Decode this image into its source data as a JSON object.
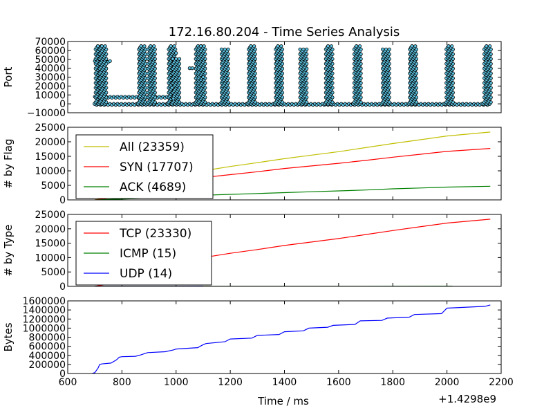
{
  "chart_data": {
    "title": "172.16.80.204 - Time Series Analysis",
    "xlabel": "Time / ms",
    "x_offset_label": "+1.4298e9",
    "xlim": [
      600,
      2200
    ],
    "xticks": [
      "600",
      "800",
      "1000",
      "1200",
      "1400",
      "1600",
      "1800",
      "2000",
      "2200"
    ],
    "subplots": [
      {
        "id": "port",
        "type": "scatter",
        "ylabel": "Port",
        "ylim": [
          -10000,
          70000
        ],
        "yticks": [
          "−10000",
          "0",
          "10000",
          "20000",
          "30000",
          "40000",
          "50000",
          "60000",
          "70000"
        ],
        "marker_color": "#5bc0de",
        "bursts": [
          {
            "x": 715,
            "ymax": 65000
          },
          {
            "x": 730,
            "ymax": 65000
          },
          {
            "x": 875,
            "ymax": 65000
          },
          {
            "x": 910,
            "ymax": 65000
          },
          {
            "x": 985,
            "ymax": 65000
          },
          {
            "x": 1000,
            "ymax": 52000
          },
          {
            "x": 1085,
            "ymax": 65000
          },
          {
            "x": 1095,
            "ymax": 65000
          },
          {
            "x": 1180,
            "ymax": 62000
          },
          {
            "x": 1280,
            "ymax": 65000
          },
          {
            "x": 1380,
            "ymax": 65000
          },
          {
            "x": 1470,
            "ymax": 62000
          },
          {
            "x": 1565,
            "ymax": 65000
          },
          {
            "x": 1670,
            "ymax": 65000
          },
          {
            "x": 1775,
            "ymax": 62000
          },
          {
            "x": 1875,
            "ymax": 65000
          },
          {
            "x": 2010,
            "ymax": 65000
          },
          {
            "x": 2150,
            "ymax": 65000
          }
        ],
        "isolated_points": [
          {
            "x": 1050,
            "y": 40000
          },
          {
            "x": 1060,
            "y": 40000
          },
          {
            "x": 1100,
            "y": 30000
          },
          {
            "x": 1000,
            "y": 57000
          },
          {
            "x": 985,
            "y": 18000
          },
          {
            "x": 990,
            "y": 6000
          }
        ],
        "bands": [
          {
            "x0": 700,
            "x1": 1000,
            "y": 8000
          },
          {
            "x0": 700,
            "x1": 760,
            "y": 48000
          },
          {
            "x0": 700,
            "x1": 2160,
            "y": 0
          }
        ]
      },
      {
        "id": "flag",
        "type": "line",
        "ylabel": "# by Flag",
        "ylim": [
          0,
          25000
        ],
        "yticks": [
          "0",
          "5000",
          "10000",
          "15000",
          "20000",
          "25000"
        ],
        "legend_position": "upper-left",
        "series": [
          {
            "name": "All (23359)",
            "color": "#bfbf00",
            "x": [
              700,
              900,
              1000,
              1100,
              1200,
              1300,
              1400,
              1500,
              1600,
              1700,
              1800,
              1900,
              2000,
              2160
            ],
            "y": [
              0,
              3000,
              6000,
              10000,
              11500,
              12800,
              14200,
              15400,
              16600,
              18000,
              19400,
              20700,
              22000,
              23359
            ]
          },
          {
            "name": "SYN (17707)",
            "color": "#ff0000",
            "x": [
              700,
              900,
              1000,
              1100,
              1200,
              1300,
              1400,
              1500,
              1600,
              1700,
              1800,
              1900,
              2000,
              2160
            ],
            "y": [
              0,
              2000,
              4500,
              7700,
              8700,
              9700,
              10800,
              11700,
              12600,
              13600,
              14700,
              15700,
              16700,
              17707
            ]
          },
          {
            "name": "ACK (4689)",
            "color": "#008000",
            "x": [
              700,
              900,
              1000,
              1100,
              1200,
              1300,
              1400,
              1500,
              1600,
              1700,
              1800,
              1900,
              2000,
              2160
            ],
            "y": [
              0,
              600,
              1200,
              1600,
              1900,
              2200,
              2500,
              2800,
              3100,
              3400,
              3800,
              4100,
              4400,
              4689
            ]
          }
        ]
      },
      {
        "id": "type",
        "type": "line",
        "ylabel": "# by Type",
        "ylim": [
          0,
          25000
        ],
        "yticks": [
          "0",
          "5000",
          "10000",
          "15000",
          "20000",
          "25000"
        ],
        "legend_position": "upper-left",
        "series": [
          {
            "name": "TCP (23330)",
            "color": "#ff0000",
            "x": [
              700,
              900,
              1000,
              1100,
              1200,
              1300,
              1400,
              1500,
              1600,
              1700,
              1800,
              1900,
              2000,
              2160
            ],
            "y": [
              0,
              3000,
              6000,
              10000,
              11500,
              12800,
              14200,
              15400,
              16600,
              18000,
              19400,
              20700,
              22000,
              23330
            ]
          },
          {
            "name": "ICMP (15)",
            "color": "#008000",
            "x": [
              700,
              2020
            ],
            "y": [
              0,
              15
            ]
          },
          {
            "name": "UDP (14)",
            "color": "#0000ff",
            "x": [
              700,
              1100
            ],
            "y": [
              0,
              14
            ]
          }
        ]
      },
      {
        "id": "bytes",
        "type": "line",
        "ylabel": "Bytes",
        "ylim": [
          0,
          1600000
        ],
        "yticks": [
          "0",
          "200000",
          "400000",
          "600000",
          "800000",
          "1000000",
          "1200000",
          "1400000",
          "1600000"
        ],
        "series": [
          {
            "name": "",
            "color": "#0000ff",
            "x": [
              690,
              700,
              712,
              718,
              725,
              760,
              780,
              790,
              800,
              850,
              870,
              885,
              895,
              960,
              990,
              1000,
              1080,
              1095,
              1110,
              1180,
              1200,
              1280,
              1300,
              1380,
              1400,
              1470,
              1490,
              1560,
              1580,
              1660,
              1680,
              1760,
              1780,
              1860,
              1880,
              1980,
              2000,
              2140,
              2160
            ],
            "y": [
              0,
              20000,
              120000,
              200000,
              210000,
              230000,
              300000,
              360000,
              370000,
              380000,
              410000,
              440000,
              460000,
              480000,
              520000,
              540000,
              570000,
              620000,
              660000,
              700000,
              760000,
              780000,
              840000,
              860000,
              920000,
              940000,
              1000000,
              1020000,
              1060000,
              1080000,
              1160000,
              1170000,
              1220000,
              1240000,
              1300000,
              1320000,
              1440000,
              1480000,
              1510000
            ]
          }
        ]
      }
    ]
  }
}
